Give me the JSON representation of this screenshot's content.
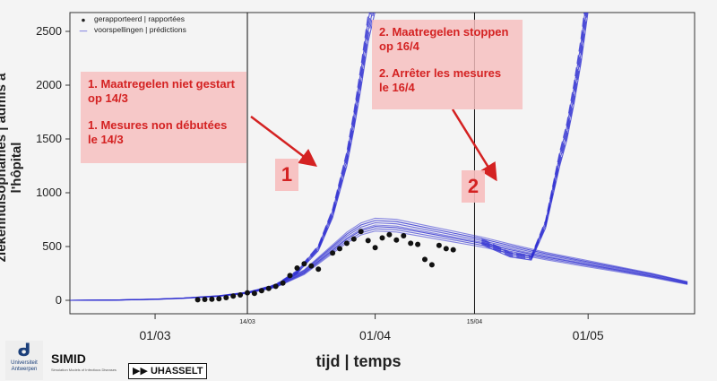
{
  "chart_data": {
    "type": "line",
    "xlabel": "tijd | temps",
    "ylabel": "ziekenhuisopnames | admis à l'hôpital",
    "ylim": [
      0,
      2500
    ],
    "yticks": [
      0,
      500,
      1000,
      1500,
      2000,
      2500
    ],
    "xlim": [
      "2020-02-18",
      "2020-05-16"
    ],
    "x_ticks": [
      {
        "date": "2020-03-01",
        "label": "01/03"
      },
      {
        "date": "2020-04-01",
        "label": "01/04"
      },
      {
        "date": "2020-05-01",
        "label": "01/05"
      }
    ],
    "vlines": [
      {
        "date": "2020-03-14",
        "label": "14/03"
      },
      {
        "date": "2020-04-15",
        "label": "15/04"
      }
    ],
    "legend": {
      "placement": "top-left",
      "entries": [
        {
          "label": "gerapporteerd | rapportées",
          "marker": "point",
          "color": "#111111"
        },
        {
          "label": "voorspellingen | prédictions",
          "marker": "line",
          "color": "#2a2ad0"
        }
      ]
    },
    "reported": {
      "name": "gerapporteerd | rapportées",
      "points": [
        [
          "2020-03-07",
          5
        ],
        [
          "2020-03-08",
          8
        ],
        [
          "2020-03-09",
          10
        ],
        [
          "2020-03-10",
          15
        ],
        [
          "2020-03-11",
          25
        ],
        [
          "2020-03-12",
          40
        ],
        [
          "2020-03-13",
          50
        ],
        [
          "2020-03-14",
          70
        ],
        [
          "2020-03-15",
          65
        ],
        [
          "2020-03-16",
          90
        ],
        [
          "2020-03-17",
          110
        ],
        [
          "2020-03-18",
          130
        ],
        [
          "2020-03-19",
          160
        ],
        [
          "2020-03-20",
          230
        ],
        [
          "2020-03-21",
          300
        ],
        [
          "2020-03-22",
          340
        ],
        [
          "2020-03-23",
          320
        ],
        [
          "2020-03-24",
          290
        ],
        [
          "2020-03-26",
          440
        ],
        [
          "2020-03-27",
          480
        ],
        [
          "2020-03-28",
          530
        ],
        [
          "2020-03-29",
          570
        ],
        [
          "2020-03-30",
          640
        ],
        [
          "2020-03-31",
          555
        ],
        [
          "2020-04-01",
          490
        ],
        [
          "2020-04-02",
          580
        ],
        [
          "2020-04-03",
          610
        ],
        [
          "2020-04-04",
          560
        ],
        [
          "2020-04-05",
          600
        ],
        [
          "2020-04-06",
          530
        ],
        [
          "2020-04-07",
          520
        ],
        [
          "2020-04-08",
          380
        ],
        [
          "2020-04-09",
          330
        ],
        [
          "2020-04-10",
          510
        ],
        [
          "2020-04-11",
          480
        ],
        [
          "2020-04-12",
          470
        ]
      ]
    },
    "forecast_baseline": {
      "name": "voorspellingen | prédictions",
      "points": [
        [
          "2020-02-18",
          0
        ],
        [
          "2020-02-25",
          3
        ],
        [
          "2020-03-01",
          10
        ],
        [
          "2020-03-05",
          20
        ],
        [
          "2020-03-10",
          40
        ],
        [
          "2020-03-14",
          70
        ],
        [
          "2020-03-18",
          130
        ],
        [
          "2020-03-22",
          260
        ],
        [
          "2020-03-25",
          420
        ],
        [
          "2020-03-28",
          580
        ],
        [
          "2020-03-30",
          660
        ],
        [
          "2020-04-01",
          700
        ],
        [
          "2020-04-04",
          690
        ],
        [
          "2020-04-08",
          640
        ],
        [
          "2020-04-12",
          590
        ],
        [
          "2020-04-16",
          540
        ],
        [
          "2020-04-20",
          480
        ],
        [
          "2020-04-25",
          410
        ],
        [
          "2020-04-30",
          350
        ],
        [
          "2020-05-05",
          290
        ],
        [
          "2020-05-10",
          230
        ],
        [
          "2020-05-15",
          160
        ]
      ]
    },
    "scenario_1": {
      "branch_date": "2020-03-14",
      "points": [
        [
          "2020-03-14",
          70
        ],
        [
          "2020-03-18",
          140
        ],
        [
          "2020-03-21",
          260
        ],
        [
          "2020-03-24",
          480
        ],
        [
          "2020-03-26",
          800
        ],
        [
          "2020-03-28",
          1300
        ],
        [
          "2020-03-29",
          1650
        ],
        [
          "2020-03-30",
          2050
        ],
        [
          "2020-03-31",
          2500
        ],
        [
          "2020-04-01",
          2800
        ]
      ]
    },
    "scenario_2": {
      "branch_date": "2020-04-16",
      "points": [
        [
          "2020-04-16",
          540
        ],
        [
          "2020-04-20",
          420
        ],
        [
          "2020-04-23",
          390
        ],
        [
          "2020-04-25",
          700
        ],
        [
          "2020-04-27",
          1300
        ],
        [
          "2020-04-28",
          1550
        ],
        [
          "2020-04-29",
          1900
        ],
        [
          "2020-04-30",
          2300
        ],
        [
          "2020-05-01",
          2800
        ]
      ]
    }
  },
  "annotations": {
    "box1": {
      "line1": "1. Maatregelen niet gestart\nop 14/3",
      "line2": "1. Mesures non débutées\nle 14/3"
    },
    "box2": {
      "line1": "2. Maatregelen stoppen\nop 16/4",
      "line2": "2. Arrêter les mesures\nle 16/4"
    },
    "badge1": "1",
    "badge2": "2",
    "color": "#d42222"
  },
  "logos": {
    "ua_name": "Universiteit\nAntwerpen",
    "simid_name": "SIMID",
    "simid_tagline": "Simulation Models of Infectious Diseases",
    "uhasselt_name": "UHASSELT"
  }
}
